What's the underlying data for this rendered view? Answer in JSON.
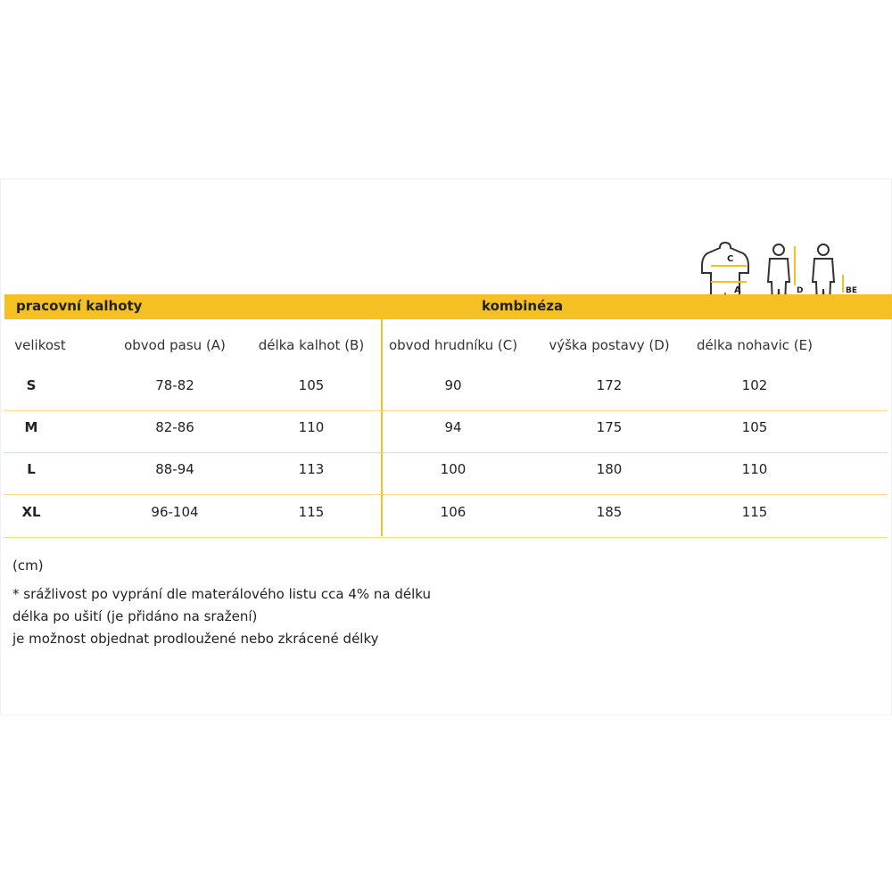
{
  "sections": {
    "pants": "pracovní kalhoty",
    "overall": "kombinéza"
  },
  "headers": [
    "velikost",
    "obvod pasu (A)",
    "délka kalhot (B)",
    "obvod hrudníku (C)",
    "výška postavy (D)",
    "délka nohavic (E)"
  ],
  "rows": [
    [
      "S",
      "78-82",
      "105",
      "90",
      "172",
      "102"
    ],
    [
      "M",
      "82-86",
      "110",
      "94",
      "175",
      "105"
    ],
    [
      "L",
      "88-94",
      "113",
      "100",
      "180",
      "110"
    ],
    [
      "XL",
      "96-104",
      "115",
      "106",
      "185",
      "115"
    ]
  ],
  "diagram_labels": {
    "c": "C",
    "a": "A",
    "d": "D",
    "be": "BE"
  },
  "notes": {
    "unit": "(cm)",
    "line1": "* srážlivost po vyprání dle materálového listu cca 4% na délku",
    "line2": "délka po ušití (je přidáno na sražení)",
    "line3": "je možnost objednat prodloužené nebo zkrácené délky"
  },
  "colors": {
    "accent": "#f5c024"
  }
}
